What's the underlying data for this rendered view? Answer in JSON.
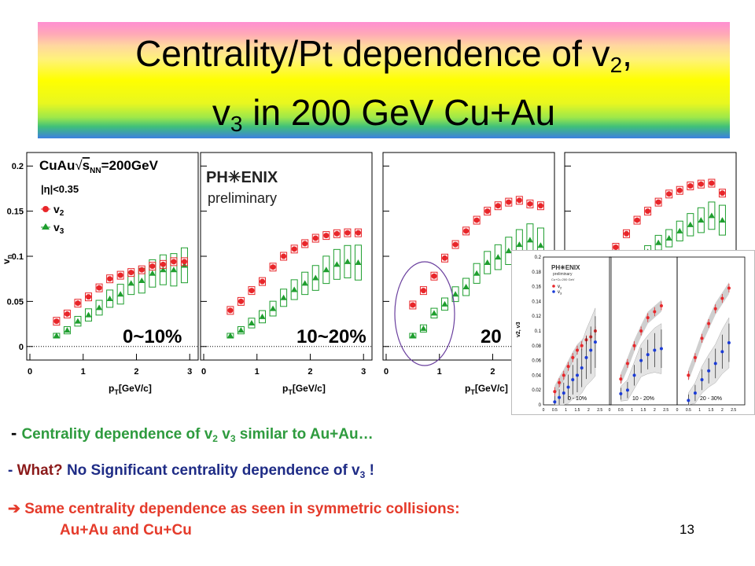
{
  "slide": {
    "title_line1_pre": "Centrality/Pt dependence of v",
    "title_line1_sub": "2",
    "title_line1_post": ",",
    "title_line2_pre": "v",
    "title_line2_sub": "3",
    "title_line2_post": " in 200 GeV Cu+Au",
    "page_number": "13"
  },
  "bullets": {
    "b1_dash": "- ",
    "b1_pre": "Centrality dependence of v",
    "b1_sub1": "2",
    "b1_mid": " v",
    "b1_sub2": "3",
    "b1_post": "  similar to Au+Au…",
    "b2_dash": "- ",
    "b2_what": "What? ",
    "b2_rest": "No Significant centrality dependence of v",
    "b2_sub": "3",
    "b2_end": " !",
    "b3_arrow": "➔",
    "b3_line1": " Same centrality dependence as seen in symmetric collisions:",
    "b3_line2": "Au+Au and Cu+Cu"
  },
  "colors": {
    "v2": "#e8262a",
    "v3": "#1e9e2e",
    "cucu_v3": "#1b3bd6",
    "circle": "#6a3f9e"
  },
  "chart_data": [
    {
      "type": "scatter",
      "annotation_system": "CuAu",
      "annotation_energy": "=200GeV",
      "annotation_sqrt": "s",
      "annotation_sub": "NN",
      "cut": "|η|<0.35",
      "ylabel": "v",
      "ylabel_sub": "n",
      "xlabel": "p",
      "xlabel_sub": "T",
      "xlabel_unit": "[GeV/c]",
      "logo": "PH✳ENIX",
      "logo_sub": "preliminary",
      "legend": [
        "v2",
        "v3"
      ],
      "legend_labels": [
        {
          "pre": "v",
          "sub": "2"
        },
        {
          "pre": "v",
          "sub": "3"
        }
      ],
      "x_ticks": [
        "0",
        "1",
        "2",
        "3"
      ],
      "y_ticks": [
        "0",
        "0.05",
        "0.1",
        "0.15",
        "0.2"
      ],
      "xlim": [
        0,
        3.1
      ],
      "ylim": [
        -0.015,
        0.215
      ],
      "panels": [
        {
          "label": "0~10%",
          "x": [
            0.5,
            0.7,
            0.9,
            1.1,
            1.3,
            1.5,
            1.7,
            1.9,
            2.1,
            2.3,
            2.5,
            2.7,
            2.9
          ],
          "v2": [
            0.028,
            0.036,
            0.048,
            0.055,
            0.065,
            0.075,
            0.079,
            0.082,
            0.085,
            0.089,
            0.091,
            0.094,
            0.094
          ],
          "v3": [
            0.012,
            0.018,
            0.028,
            0.035,
            0.043,
            0.053,
            0.058,
            0.07,
            0.073,
            0.081,
            0.085,
            0.085,
            0.09
          ]
        },
        {
          "label": "10~20%",
          "x": [
            0.5,
            0.7,
            0.9,
            1.1,
            1.3,
            1.5,
            1.7,
            1.9,
            2.1,
            2.3,
            2.5,
            2.7,
            2.9
          ],
          "v2": [
            0.04,
            0.05,
            0.062,
            0.072,
            0.088,
            0.1,
            0.108,
            0.114,
            0.12,
            0.123,
            0.125,
            0.126,
            0.126
          ],
          "v3": [
            0.012,
            0.018,
            0.026,
            0.033,
            0.042,
            0.054,
            0.063,
            0.07,
            0.076,
            0.085,
            0.091,
            0.094,
            0.093
          ]
        },
        {
          "label": "20",
          "x": [
            0.5,
            0.7,
            0.9,
            1.1,
            1.3,
            1.5,
            1.7,
            1.9,
            2.1,
            2.3,
            2.5,
            2.7,
            2.9
          ],
          "v2": [
            0.046,
            0.062,
            0.078,
            0.098,
            0.113,
            0.128,
            0.14,
            0.15,
            0.156,
            0.16,
            0.162,
            0.158,
            0.156
          ],
          "v3": [
            0.012,
            0.02,
            0.037,
            0.047,
            0.058,
            0.066,
            0.081,
            0.093,
            0.099,
            0.106,
            0.113,
            0.118,
            0.112
          ]
        },
        {
          "label": "",
          "x": [
            0.9,
            1.1,
            1.3,
            1.5,
            1.7,
            1.9,
            2.1,
            2.3,
            2.5,
            2.7,
            2.9
          ],
          "v2": [
            0.11,
            0.125,
            0.14,
            0.15,
            0.16,
            0.169,
            0.173,
            0.178,
            0.18,
            0.181,
            0.17
          ],
          "v3": [
            0.075,
            0.085,
            0.095,
            0.105,
            0.115,
            0.12,
            0.128,
            0.135,
            0.14,
            0.145,
            0.14
          ]
        }
      ]
    },
    {
      "type": "scatter",
      "logo": "PH✳ENIX",
      "logo_sub": "preliminary",
      "system": "Cu+Cu 200 GeV",
      "legend": [
        "v2",
        "v3"
      ],
      "legend_labels": [
        {
          "pre": "v",
          "sub": "2"
        },
        {
          "pre": "v",
          "sub": "3"
        }
      ],
      "ylabel": "v2, v3",
      "y_ticks": [
        "0",
        "0.02",
        "0.04",
        "0.06",
        "0.08",
        "0.1",
        "0.12",
        "0.14",
        "0.16",
        "0.18",
        "0.2"
      ],
      "x_ticks": [
        "0",
        "0.5",
        "1",
        "1.5",
        "2",
        "2.5",
        "3"
      ],
      "xlim": [
        0,
        3
      ],
      "ylim": [
        0,
        0.2
      ],
      "panels": [
        {
          "label": "0 - 10%",
          "x": [
            0.5,
            0.7,
            0.9,
            1.1,
            1.3,
            1.5,
            1.7,
            1.9,
            2.1,
            2.3
          ],
          "v2": [
            0.018,
            0.03,
            0.04,
            0.052,
            0.064,
            0.074,
            0.08,
            0.088,
            0.092,
            0.1
          ],
          "v3": [
            0.004,
            0.01,
            0.016,
            0.024,
            0.034,
            0.04,
            0.05,
            0.064,
            0.074,
            0.085
          ]
        },
        {
          "label": "10 - 20%",
          "x": [
            0.5,
            0.8,
            1.1,
            1.4,
            1.7,
            2.0,
            2.3
          ],
          "v2": [
            0.035,
            0.056,
            0.08,
            0.1,
            0.118,
            0.126,
            0.134
          ],
          "v3": [
            0.015,
            0.02,
            0.04,
            0.06,
            0.068,
            0.074,
            0.076
          ]
        },
        {
          "label": "20 - 30%",
          "x": [
            0.5,
            0.8,
            1.1,
            1.4,
            1.7,
            2.0,
            2.3
          ],
          "v2": [
            0.04,
            0.064,
            0.09,
            0.11,
            0.13,
            0.144,
            0.158
          ],
          "v3": [
            0.006,
            0.016,
            0.034,
            0.046,
            0.056,
            0.072,
            0.084
          ]
        }
      ]
    }
  ]
}
